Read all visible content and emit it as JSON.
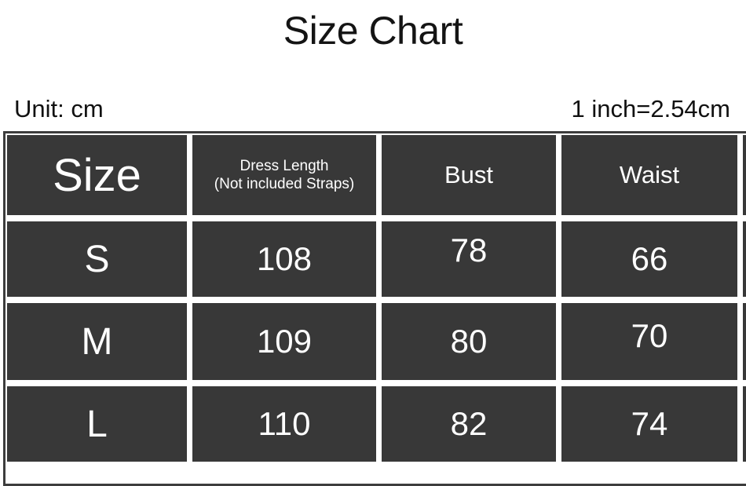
{
  "header": {
    "title": "Size Chart",
    "unit": "Unit: cm",
    "conversion": "1 inch=2.54cm"
  },
  "table": {
    "col_size": "Size",
    "col_dress_line1": "Dress Length",
    "col_dress_line2": "(Not included Straps)",
    "col_bust": "Bust",
    "col_waist": "Waist",
    "rows": [
      {
        "size": "S",
        "dress_length": "108",
        "bust": "78",
        "waist": "66"
      },
      {
        "size": "M",
        "dress_length": "109",
        "bust": "80",
        "waist": "70"
      },
      {
        "size": "L",
        "dress_length": "110",
        "bust": "82",
        "waist": "74"
      }
    ]
  },
  "colors": {
    "background": "#ffffff",
    "cell_background": "#383838",
    "table_border": "#3d3d3d",
    "cell_text": "#ffffff",
    "page_text": "#141414"
  },
  "chart_data": {
    "type": "table",
    "title": "Size Chart",
    "unit": "cm",
    "conversion": "1 inch=2.54cm",
    "columns": [
      "Size",
      "Dress Length (Not included Straps)",
      "Bust",
      "Waist"
    ],
    "rows": [
      [
        "S",
        "108",
        "78",
        "66"
      ],
      [
        "M",
        "109",
        "80",
        "70"
      ],
      [
        "L",
        "110",
        "82",
        "74"
      ]
    ]
  }
}
